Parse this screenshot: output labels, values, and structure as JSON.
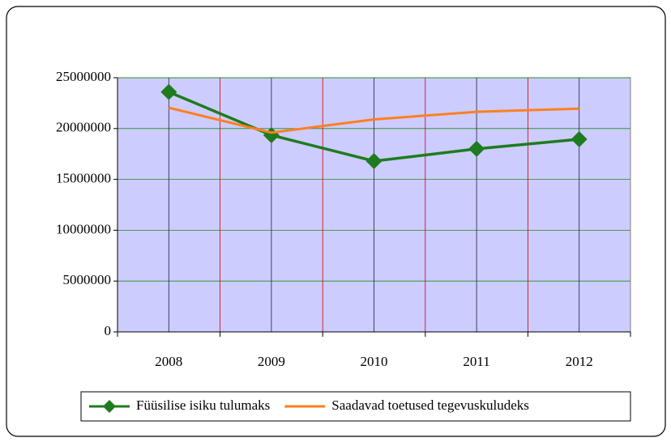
{
  "chart_data": {
    "type": "line",
    "categories": [
      "2008",
      "2009",
      "2010",
      "2011",
      "2012"
    ],
    "series": [
      {
        "name": "Füüsilise isiku tulumaks",
        "color": "#1e7b1e",
        "marker": "diamond",
        "values": [
          23600000,
          19350000,
          16800000,
          18000000,
          18950000
        ]
      },
      {
        "name": "Saadavad toetused tegevuskuludeks",
        "color": "#ff7f1e",
        "marker": "none",
        "values": [
          22050000,
          19600000,
          20900000,
          21650000,
          21950000
        ]
      }
    ],
    "ylim": [
      0,
      25000000
    ],
    "yticks": [
      0,
      5000000,
      10000000,
      15000000,
      20000000,
      25000000
    ],
    "grid": true,
    "legend": "bottom",
    "plot_background": "#ccccff"
  }
}
